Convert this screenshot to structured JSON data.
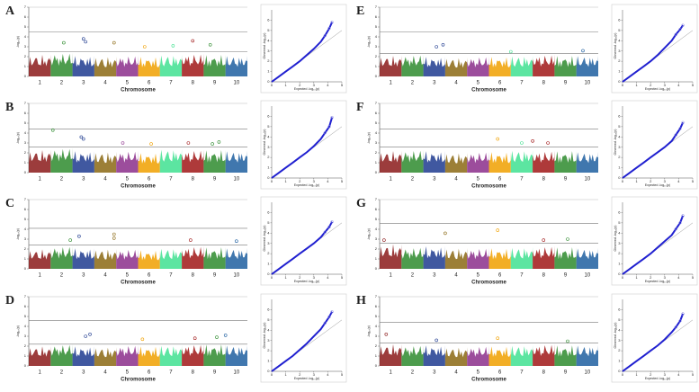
{
  "chart_data": [
    {
      "type": "manhattan",
      "panel": "A",
      "x_label": "Chromosome",
      "y_label": "-log₁₀(p)",
      "categories": [
        "1",
        "2",
        "3",
        "4",
        "5",
        "6",
        "7",
        "8",
        "9",
        "10"
      ],
      "colors": [
        "#8b1a1a",
        "#2e8b2e",
        "#1f3b8f",
        "#8b6914",
        "#8b2e8b",
        "#f0a000",
        "#40e090",
        "#a01818",
        "#2e8b2e",
        "#1f5fa0"
      ],
      "values": [
        2.2,
        2.4,
        2.1,
        2.0,
        2.1,
        2.0,
        2.2,
        2.3,
        2.2,
        2.1
      ],
      "thresholds": [
        2.5,
        4.5
      ],
      "peaks": {
        "x": [
          1.6,
          2.5,
          2.6,
          3.9,
          5.3,
          6.6,
          7.5,
          8.3
        ],
        "values": [
          3.4,
          3.8,
          3.5,
          3.4,
          3.0,
          3.1,
          3.6,
          3.2
        ]
      },
      "xlim": [
        0,
        10
      ],
      "ylim": [
        0,
        7
      ],
      "yticks": [
        0,
        1,
        2,
        3,
        4,
        5,
        6,
        7
      ]
    },
    {
      "type": "qq",
      "panel": "A",
      "x_label": "Expected -log₁₀(p)",
      "y_label": "Observed -log₁₀(p)",
      "x": [
        0,
        0.5,
        1,
        1.5,
        2,
        2.5,
        3,
        3.5,
        3.8,
        4.1,
        4.3
      ],
      "values": [
        0,
        0.5,
        1,
        1.5,
        2,
        2.6,
        3.2,
        3.9,
        4.5,
        5.2,
        5.8
      ],
      "color": "#2020d0",
      "xlim": [
        0,
        5
      ],
      "ylim": [
        0,
        7
      ],
      "xticks": [
        0,
        1,
        2,
        3,
        4,
        5
      ],
      "yticks": [
        0,
        1,
        2,
        3,
        4,
        5,
        6
      ]
    },
    {
      "type": "manhattan",
      "panel": "B",
      "x_label": "Chromosome",
      "y_label": "-log₁₀(p)",
      "categories": [
        "1",
        "2",
        "3",
        "4",
        "5",
        "6",
        "7",
        "8",
        "9",
        "10"
      ],
      "colors": [
        "#8b1a1a",
        "#2e8b2e",
        "#1f3b8f",
        "#8b6914",
        "#8b2e8b",
        "#f0a000",
        "#40e090",
        "#a01818",
        "#2e8b2e",
        "#1f5fa0"
      ],
      "values": [
        2.3,
        2.5,
        2.2,
        2.1,
        2.2,
        2.0,
        2.4,
        2.3,
        2.3,
        2.2
      ],
      "thresholds": [
        2.6,
        4.4
      ],
      "peaks": {
        "x": [
          1.1,
          2.4,
          2.5,
          4.3,
          5.6,
          7.3,
          8.4,
          8.7
        ],
        "values": [
          4.3,
          3.6,
          3.4,
          3.0,
          2.9,
          3.0,
          2.9,
          3.1
        ]
      },
      "xlim": [
        0,
        10
      ],
      "ylim": [
        0,
        7
      ],
      "yticks": [
        0,
        1,
        2,
        3,
        4,
        5,
        6,
        7
      ]
    },
    {
      "type": "qq",
      "panel": "B",
      "x_label": "Expected -log₁₀(p)",
      "y_label": "Observed -log₁₀(p)",
      "x": [
        0,
        0.5,
        1,
        1.5,
        2,
        2.5,
        3,
        3.5,
        3.8,
        4.1,
        4.3
      ],
      "values": [
        0,
        0.5,
        1,
        1.5,
        2,
        2.5,
        3.1,
        3.8,
        4.4,
        5.0,
        5.9
      ],
      "color": "#2020d0",
      "xlim": [
        0,
        5
      ],
      "ylim": [
        0,
        7
      ],
      "xticks": [
        0,
        1,
        2,
        3,
        4,
        5
      ],
      "yticks": [
        0,
        1,
        2,
        3,
        4,
        5,
        6
      ]
    },
    {
      "type": "manhattan",
      "panel": "C",
      "x_label": "Chromosome",
      "y_label": "-log₁₀(p)",
      "categories": [
        "1",
        "2",
        "3",
        "4",
        "5",
        "6",
        "7",
        "8",
        "9",
        "10"
      ],
      "colors": [
        "#8b1a1a",
        "#2e8b2e",
        "#1f3b8f",
        "#8b6914",
        "#8b2e8b",
        "#f0a000",
        "#40e090",
        "#a01818",
        "#2e8b2e",
        "#1f5fa0"
      ],
      "values": [
        2.0,
        2.3,
        2.1,
        2.0,
        2.0,
        1.9,
        2.1,
        2.3,
        2.2,
        2.1
      ],
      "thresholds": [
        2.4,
        4.1
      ],
      "peaks": {
        "x": [
          1.9,
          2.3,
          3.9,
          3.9,
          7.4,
          9.5
        ],
        "values": [
          2.9,
          3.3,
          3.5,
          3.1,
          2.9,
          2.8
        ]
      },
      "xlim": [
        0,
        10
      ],
      "ylim": [
        0,
        7
      ],
      "yticks": [
        0,
        1,
        2,
        3,
        4,
        5,
        6,
        7
      ]
    },
    {
      "type": "qq",
      "panel": "C",
      "x_label": "Expected -log₁₀(p)",
      "y_label": "Observed -log₁₀(p)",
      "x": [
        0,
        0.5,
        1,
        1.5,
        2,
        2.5,
        3,
        3.5,
        3.8,
        4.1,
        4.3
      ],
      "values": [
        0,
        0.5,
        1,
        1.5,
        2,
        2.5,
        3.0,
        3.6,
        4.1,
        4.6,
        5.1
      ],
      "color": "#2020d0",
      "xlim": [
        0,
        5
      ],
      "ylim": [
        0,
        7
      ],
      "xticks": [
        0,
        1,
        2,
        3,
        4,
        5
      ],
      "yticks": [
        0,
        1,
        2,
        3,
        4,
        5,
        6
      ]
    },
    {
      "type": "manhattan",
      "panel": "D",
      "x_label": "Chromosome",
      "y_label": "-log₁₀(p)",
      "categories": [
        "1",
        "2",
        "3",
        "4",
        "5",
        "6",
        "7",
        "8",
        "9",
        "10"
      ],
      "colors": [
        "#8b1a1a",
        "#2e8b2e",
        "#1f3b8f",
        "#8b6914",
        "#8b2e8b",
        "#f0a000",
        "#40e090",
        "#a01818",
        "#2e8b2e",
        "#1f5fa0"
      ],
      "values": [
        2.0,
        2.2,
        2.0,
        1.9,
        2.1,
        2.0,
        2.1,
        2.2,
        2.2,
        2.1
      ],
      "thresholds": [
        2.2,
        4.6
      ],
      "peaks": {
        "x": [
          2.6,
          2.8,
          5.2,
          7.6,
          8.6,
          9.0
        ],
        "values": [
          3.0,
          3.2,
          2.7,
          2.8,
          2.9,
          3.1
        ]
      },
      "xlim": [
        0,
        10
      ],
      "ylim": [
        0,
        7
      ],
      "yticks": [
        0,
        1,
        2,
        3,
        4,
        5,
        6,
        7
      ]
    },
    {
      "type": "qq",
      "panel": "D",
      "x_label": "Expected -log₁₀(p)",
      "y_label": "Observed -log₁₀(p)",
      "x": [
        0,
        0.5,
        1,
        1.5,
        2,
        2.5,
        3,
        3.5,
        3.8,
        4.1,
        4.3
      ],
      "values": [
        0,
        0.5,
        1,
        1.5,
        2.1,
        2.7,
        3.4,
        4.1,
        4.7,
        5.3,
        5.8
      ],
      "color": "#2020d0",
      "xlim": [
        0,
        5
      ],
      "ylim": [
        0,
        7
      ],
      "xticks": [
        0,
        1,
        2,
        3,
        4,
        5
      ],
      "yticks": [
        0,
        1,
        2,
        3,
        4,
        5,
        6
      ]
    },
    {
      "type": "manhattan",
      "panel": "E",
      "x_label": "Chromosome",
      "y_label": "-log₁₀(p)",
      "categories": [
        "1",
        "2",
        "3",
        "4",
        "5",
        "6",
        "7",
        "8",
        "9",
        "10"
      ],
      "colors": [
        "#8b1a1a",
        "#2e8b2e",
        "#1f3b8f",
        "#8b6914",
        "#8b2e8b",
        "#f0a000",
        "#40e090",
        "#a01818",
        "#2e8b2e",
        "#1f5fa0"
      ],
      "values": [
        2.1,
        2.2,
        2.0,
        1.9,
        2.0,
        2.0,
        2.1,
        2.2,
        2.1,
        2.1
      ],
      "thresholds": [
        2.3,
        4.5
      ],
      "peaks": {
        "x": [
          2.6,
          2.9,
          6.0,
          9.3
        ],
        "values": [
          3.0,
          3.2,
          2.5,
          2.6
        ]
      },
      "xlim": [
        0,
        10
      ],
      "ylim": [
        0,
        7
      ],
      "yticks": [
        0,
        1,
        2,
        3,
        4,
        5,
        6,
        7
      ]
    },
    {
      "type": "qq",
      "panel": "E",
      "x_label": "Expected -log₁₀(p)",
      "y_label": "Observed -log₁₀(p)",
      "x": [
        0,
        0.5,
        1,
        1.5,
        2,
        2.5,
        3,
        3.5,
        3.8,
        4.1,
        4.3
      ],
      "values": [
        0,
        0.5,
        1,
        1.5,
        2,
        2.6,
        3.3,
        4.0,
        4.6,
        5.1,
        5.5
      ],
      "color": "#2020d0",
      "xlim": [
        0,
        5
      ],
      "ylim": [
        0,
        7
      ],
      "xticks": [
        0,
        1,
        2,
        3,
        4,
        5
      ],
      "yticks": [
        0,
        1,
        2,
        3,
        4,
        5,
        6
      ]
    },
    {
      "type": "manhattan",
      "panel": "F",
      "x_label": "Chromosome",
      "y_label": "-log₁₀(p)",
      "categories": [
        "1",
        "2",
        "3",
        "4",
        "5",
        "6",
        "7",
        "8",
        "9",
        "10"
      ],
      "colors": [
        "#8b1a1a",
        "#2e8b2e",
        "#1f3b8f",
        "#8b6914",
        "#8b2e8b",
        "#f0a000",
        "#40e090",
        "#a01818",
        "#2e8b2e",
        "#1f5fa0"
      ],
      "values": [
        2.2,
        2.3,
        2.2,
        2.0,
        2.1,
        2.1,
        2.3,
        2.2,
        2.2,
        2.1
      ],
      "thresholds": [
        2.6,
        4.4
      ],
      "peaks": {
        "x": [
          5.4,
          6.5,
          7.0,
          7.7
        ],
        "values": [
          3.4,
          3.0,
          3.2,
          3.0
        ]
      },
      "xlim": [
        0,
        10
      ],
      "ylim": [
        0,
        7
      ],
      "yticks": [
        0,
        1,
        2,
        3,
        4,
        5,
        6,
        7
      ]
    },
    {
      "type": "qq",
      "panel": "F",
      "x_label": "Expected -log₁₀(p)",
      "y_label": "Observed -log₁₀(p)",
      "x": [
        0,
        0.5,
        1,
        1.5,
        2,
        2.5,
        3,
        3.5,
        3.8,
        4.1,
        4.3
      ],
      "values": [
        0,
        0.5,
        1,
        1.5,
        2,
        2.5,
        3.0,
        3.6,
        4.2,
        4.8,
        5.4
      ],
      "color": "#2020d0",
      "xlim": [
        0,
        5
      ],
      "ylim": [
        0,
        7
      ],
      "xticks": [
        0,
        1,
        2,
        3,
        4,
        5
      ],
      "yticks": [
        0,
        1,
        2,
        3,
        4,
        5,
        6
      ]
    },
    {
      "type": "manhattan",
      "panel": "G",
      "x_label": "Chromosome",
      "y_label": "-log₁₀(p)",
      "categories": [
        "1",
        "2",
        "3",
        "4",
        "5",
        "6",
        "7",
        "8",
        "9",
        "10"
      ],
      "colors": [
        "#8b1a1a",
        "#2e8b2e",
        "#1f3b8f",
        "#8b6914",
        "#8b2e8b",
        "#f0a000",
        "#40e090",
        "#a01818",
        "#2e8b2e",
        "#1f5fa0"
      ],
      "values": [
        2.5,
        2.2,
        2.3,
        2.1,
        2.1,
        2.1,
        2.2,
        2.3,
        2.2,
        2.1
      ],
      "thresholds": [
        2.6,
        4.6
      ],
      "peaks": {
        "x": [
          0.2,
          3.0,
          5.4,
          7.5,
          8.6
        ],
        "values": [
          2.9,
          3.6,
          3.9,
          2.9,
          3.0
        ]
      },
      "xlim": [
        0,
        10
      ],
      "ylim": [
        0,
        7
      ],
      "yticks": [
        0,
        1,
        2,
        3,
        4,
        5,
        6,
        7
      ]
    },
    {
      "type": "qq",
      "panel": "G",
      "x_label": "Expected -log₁₀(p)",
      "y_label": "Observed -log₁₀(p)",
      "x": [
        0,
        0.5,
        1,
        1.5,
        2,
        2.5,
        3,
        3.5,
        3.8,
        4.1,
        4.3
      ],
      "values": [
        0,
        0.5,
        1,
        1.5,
        2,
        2.6,
        3.2,
        3.8,
        4.4,
        5.0,
        5.7
      ],
      "color": "#2020d0",
      "xlim": [
        0,
        5
      ],
      "ylim": [
        0,
        7
      ],
      "xticks": [
        0,
        1,
        2,
        3,
        4,
        5
      ],
      "yticks": [
        0,
        1,
        2,
        3,
        4,
        5,
        6
      ]
    },
    {
      "type": "manhattan",
      "panel": "H",
      "x_label": "Chromosome",
      "y_label": "-log₁₀(p)",
      "categories": [
        "1",
        "2",
        "3",
        "4",
        "5",
        "6",
        "7",
        "8",
        "9",
        "10"
      ],
      "colors": [
        "#8b1a1a",
        "#2e8b2e",
        "#1f3b8f",
        "#8b6914",
        "#8b2e8b",
        "#f0a000",
        "#40e090",
        "#a01818",
        "#2e8b2e",
        "#1f5fa0"
      ],
      "values": [
        2.2,
        2.1,
        2.1,
        1.9,
        2.0,
        2.0,
        2.1,
        2.2,
        2.1,
        2.1
      ],
      "thresholds": [
        2.3,
        4.4
      ],
      "peaks": {
        "x": [
          0.3,
          2.6,
          5.4,
          8.6
        ],
        "values": [
          3.2,
          2.6,
          2.8,
          2.5
        ]
      },
      "xlim": [
        0,
        10
      ],
      "ylim": [
        0,
        7
      ],
      "yticks": [
        0,
        1,
        2,
        3,
        4,
        5,
        6,
        7
      ]
    },
    {
      "type": "qq",
      "panel": "H",
      "x_label": "Expected -log₁₀(p)",
      "y_label": "Observed -log₁₀(p)",
      "x": [
        0,
        0.5,
        1,
        1.5,
        2,
        2.5,
        3,
        3.5,
        3.8,
        4.1,
        4.3
      ],
      "values": [
        0,
        0.5,
        1,
        1.5,
        2,
        2.5,
        3.1,
        3.8,
        4.3,
        4.9,
        5.6
      ],
      "color": "#2020d0",
      "xlim": [
        0,
        5
      ],
      "ylim": [
        0,
        7
      ],
      "xticks": [
        0,
        1,
        2,
        3,
        4,
        5
      ],
      "yticks": [
        0,
        1,
        2,
        3,
        4,
        5,
        6
      ]
    }
  ]
}
